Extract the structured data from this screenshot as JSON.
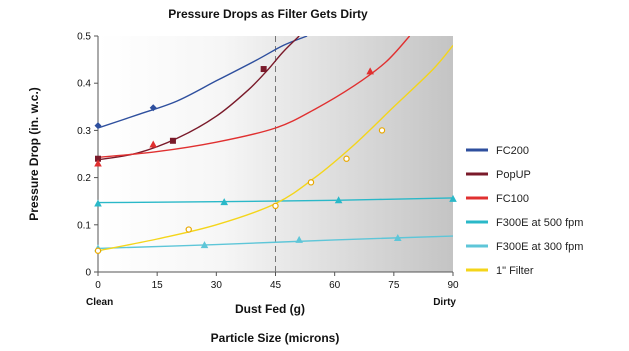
{
  "chart_data": {
    "type": "line",
    "title": "Pressure Drops as Filter Gets Dirty",
    "xlabel": "Dust Fed (g)",
    "ylabel": "Pressure Drop (in. w.c.)",
    "footer_label": "Particle Size (microns)",
    "x_end_labels": {
      "left": "Clean",
      "right": "Dirty"
    },
    "xlim": [
      0,
      90
    ],
    "ylim": [
      0,
      0.5
    ],
    "x_ticks": [
      0,
      15,
      30,
      45,
      60,
      75,
      90
    ],
    "y_ticks": [
      0,
      0.1,
      0.2,
      0.3,
      0.4,
      0.5
    ],
    "y_tick_labels": [
      "0",
      "0.1",
      "0.2",
      "0.3",
      "0.4",
      "0.5"
    ],
    "reference_line_x": 45,
    "background": "white-to-gray gradient",
    "legend_position": "right",
    "series": [
      {
        "name": "FC200",
        "color": "#2e4f9e",
        "marker": "diamond",
        "points": [
          [
            0,
            0.31
          ],
          [
            14,
            0.348
          ]
        ],
        "curve": [
          [
            0,
            0.305
          ],
          [
            10,
            0.333
          ],
          [
            20,
            0.362
          ],
          [
            30,
            0.405
          ],
          [
            40,
            0.448
          ],
          [
            47,
            0.48
          ],
          [
            53,
            0.5
          ]
        ]
      },
      {
        "name": "PopUP",
        "color": "#7a1a2a",
        "marker": "square",
        "points": [
          [
            0,
            0.24
          ],
          [
            19,
            0.278
          ],
          [
            42,
            0.43
          ]
        ],
        "curve": [
          [
            0,
            0.238
          ],
          [
            10,
            0.252
          ],
          [
            20,
            0.283
          ],
          [
            30,
            0.33
          ],
          [
            38,
            0.385
          ],
          [
            43,
            0.428
          ],
          [
            47,
            0.467
          ],
          [
            51,
            0.5
          ]
        ]
      },
      {
        "name": "FC100",
        "color": "#e03030",
        "marker": "triangle",
        "points": [
          [
            0,
            0.23
          ],
          [
            14,
            0.27
          ],
          [
            69,
            0.425
          ]
        ],
        "curve": [
          [
            0,
            0.243
          ],
          [
            15,
            0.255
          ],
          [
            30,
            0.275
          ],
          [
            45,
            0.305
          ],
          [
            55,
            0.345
          ],
          [
            65,
            0.395
          ],
          [
            73,
            0.445
          ],
          [
            79,
            0.5
          ]
        ]
      },
      {
        "name": "F300E at 500 fpm",
        "color": "#2ab8c8",
        "marker": "triangle",
        "points": [
          [
            0,
            0.145
          ],
          [
            32,
            0.148
          ],
          [
            61,
            0.152
          ],
          [
            90,
            0.155
          ]
        ],
        "curve": [
          [
            0,
            0.147
          ],
          [
            30,
            0.149
          ],
          [
            60,
            0.152
          ],
          [
            90,
            0.157
          ]
        ]
      },
      {
        "name": "F300E at 300 fpm",
        "color": "#5ec6d8",
        "marker": "triangle",
        "points": [
          [
            0,
            0.05
          ],
          [
            27,
            0.057
          ],
          [
            51,
            0.068
          ],
          [
            76,
            0.072
          ]
        ],
        "curve": [
          [
            0,
            0.05
          ],
          [
            30,
            0.058
          ],
          [
            60,
            0.068
          ],
          [
            90,
            0.076
          ]
        ]
      },
      {
        "name": "1\" Filter",
        "color": "#f4d51a",
        "marker": "circle",
        "points": [
          [
            0,
            0.045
          ],
          [
            23,
            0.09
          ],
          [
            45,
            0.14
          ],
          [
            54,
            0.19
          ],
          [
            63,
            0.24
          ],
          [
            72,
            0.3
          ]
        ],
        "curve": [
          [
            0,
            0.045
          ],
          [
            15,
            0.07
          ],
          [
            30,
            0.1
          ],
          [
            45,
            0.145
          ],
          [
            55,
            0.2
          ],
          [
            65,
            0.27
          ],
          [
            75,
            0.35
          ],
          [
            85,
            0.43
          ],
          [
            90,
            0.48
          ]
        ]
      }
    ]
  }
}
